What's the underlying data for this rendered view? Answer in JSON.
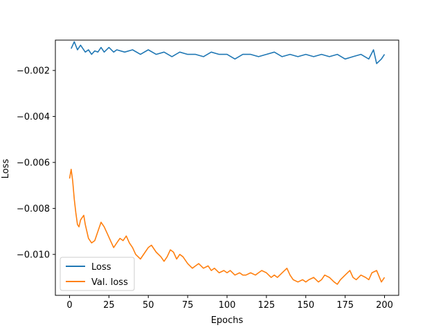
{
  "chart_data": {
    "type": "line",
    "xlabel": "Epochs",
    "ylabel": "Loss",
    "xlim": [
      -9,
      209
    ],
    "ylim": [
      -0.01178,
      -0.00068
    ],
    "xticks": [
      0,
      25,
      50,
      75,
      100,
      125,
      150,
      175,
      200
    ],
    "yticks": [
      -0.002,
      -0.004,
      -0.006,
      -0.008,
      -0.01
    ],
    "ytick_labels": [
      "−0.002",
      "−0.004",
      "−0.006",
      "−0.008",
      "−0.010"
    ],
    "legend_position": "lower-left",
    "grid": false,
    "series": [
      {
        "name": "Loss",
        "color": "#1f77b4",
        "x": [
          1,
          3,
          5,
          7,
          10,
          12,
          14,
          16,
          18,
          20,
          22,
          25,
          28,
          30,
          35,
          40,
          45,
          50,
          55,
          60,
          65,
          70,
          75,
          80,
          85,
          90,
          95,
          100,
          105,
          110,
          115,
          120,
          125,
          130,
          135,
          140,
          145,
          150,
          155,
          160,
          165,
          170,
          175,
          180,
          185,
          190,
          193,
          195,
          198,
          200
        ],
        "y": [
          -0.00105,
          -0.00075,
          -0.0011,
          -0.0009,
          -0.0012,
          -0.0011,
          -0.0013,
          -0.00115,
          -0.0012,
          -0.001,
          -0.0012,
          -0.001,
          -0.0012,
          -0.0011,
          -0.0012,
          -0.0011,
          -0.0013,
          -0.0011,
          -0.0013,
          -0.0012,
          -0.0014,
          -0.0012,
          -0.0013,
          -0.0013,
          -0.0014,
          -0.0012,
          -0.0013,
          -0.0013,
          -0.0015,
          -0.0013,
          -0.0013,
          -0.0014,
          -0.0013,
          -0.0012,
          -0.0014,
          -0.0013,
          -0.0014,
          -0.0013,
          -0.0014,
          -0.0013,
          -0.0014,
          -0.0013,
          -0.0015,
          -0.0014,
          -0.0013,
          -0.0015,
          -0.0011,
          -0.0017,
          -0.0015,
          -0.0013
        ]
      },
      {
        "name": "Val. loss",
        "color": "#ff7f0e",
        "x": [
          0,
          1,
          2,
          3,
          4,
          5,
          6,
          7,
          8,
          9,
          10,
          12,
          14,
          16,
          18,
          20,
          22,
          24,
          26,
          28,
          30,
          32,
          34,
          36,
          38,
          40,
          42,
          45,
          48,
          50,
          52,
          55,
          58,
          60,
          62,
          64,
          66,
          68,
          70,
          72,
          75,
          78,
          80,
          82,
          85,
          88,
          90,
          92,
          95,
          98,
          100,
          102,
          105,
          108,
          110,
          112,
          115,
          118,
          120,
          122,
          125,
          128,
          130,
          132,
          135,
          138,
          140,
          142,
          145,
          148,
          150,
          152,
          155,
          158,
          160,
          162,
          165,
          168,
          170,
          172,
          175,
          178,
          180,
          182,
          185,
          188,
          190,
          192,
          195,
          198,
          200
        ],
        "y": [
          -0.0067,
          -0.0063,
          -0.0068,
          -0.0076,
          -0.0082,
          -0.0087,
          -0.0088,
          -0.0085,
          -0.0084,
          -0.0083,
          -0.0087,
          -0.0093,
          -0.0095,
          -0.0094,
          -0.009,
          -0.0086,
          -0.0088,
          -0.0091,
          -0.0094,
          -0.0097,
          -0.0095,
          -0.0093,
          -0.0094,
          -0.0092,
          -0.0095,
          -0.0097,
          -0.01,
          -0.0102,
          -0.0099,
          -0.0097,
          -0.0096,
          -0.0099,
          -0.0101,
          -0.0103,
          -0.0101,
          -0.0098,
          -0.0099,
          -0.0102,
          -0.01,
          -0.0101,
          -0.0104,
          -0.0106,
          -0.0105,
          -0.0104,
          -0.0106,
          -0.0105,
          -0.0107,
          -0.0106,
          -0.0108,
          -0.0107,
          -0.0108,
          -0.0107,
          -0.0109,
          -0.0108,
          -0.0109,
          -0.0109,
          -0.0108,
          -0.0109,
          -0.0108,
          -0.0107,
          -0.0108,
          -0.011,
          -0.0109,
          -0.011,
          -0.0108,
          -0.0106,
          -0.0109,
          -0.0111,
          -0.0112,
          -0.0111,
          -0.0112,
          -0.0111,
          -0.011,
          -0.0112,
          -0.0111,
          -0.0109,
          -0.011,
          -0.0112,
          -0.0113,
          -0.0111,
          -0.0109,
          -0.0107,
          -0.011,
          -0.0111,
          -0.0109,
          -0.011,
          -0.0111,
          -0.0108,
          -0.0107,
          -0.0112,
          -0.011
        ]
      }
    ]
  }
}
